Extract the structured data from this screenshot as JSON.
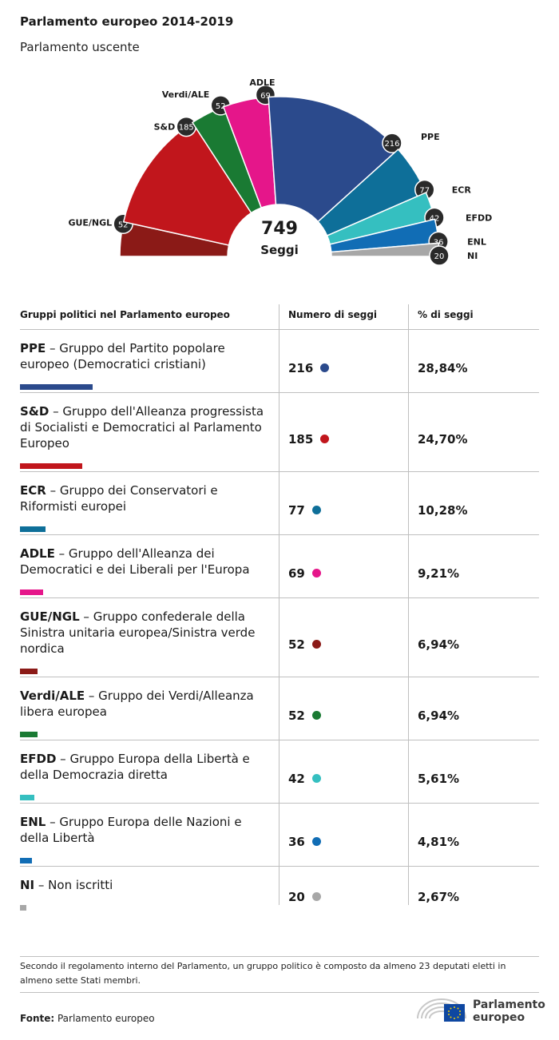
{
  "header": {
    "title": "Parlamento europeo 2014-2019",
    "subtitle": "Parlamento uscente"
  },
  "chart_data": {
    "type": "pie",
    "variant": "half-donut parliament chart",
    "center_value": "749",
    "center_label": "Seggi",
    "total": 749,
    "slices": [
      {
        "label": "GUE/NGL",
        "value": 52,
        "color": "#8b1a17"
      },
      {
        "label": "S&D",
        "value": 185,
        "color": "#c1161c"
      },
      {
        "label": "Verdi/ALE",
        "value": 52,
        "color": "#1a7a33"
      },
      {
        "label": "ADLE",
        "value": 69,
        "color": "#e5168a"
      },
      {
        "label": "PPE",
        "value": 216,
        "color": "#2b4a8c"
      },
      {
        "label": "ECR",
        "value": 77,
        "color": "#0e6f99"
      },
      {
        "label": "EFDD",
        "value": 42,
        "color": "#35bfc0"
      },
      {
        "label": "ENL",
        "value": 36,
        "color": "#116db5"
      },
      {
        "label": "NI",
        "value": 20,
        "color": "#a7a7a7"
      }
    ]
  },
  "table": {
    "headers": [
      "Gruppi politici nel Parlamento europeo",
      "Numero di seggi",
      "% di seggi"
    ],
    "rows": [
      {
        "abbr": "PPE",
        "name": " – Gruppo del Partito popolare europeo (Democratici cristiani)",
        "seats": "216",
        "pct": "28,84%",
        "color": "#2b4a8c",
        "share": 0.2884
      },
      {
        "abbr": "S&D",
        "name": " – Gruppo dell'Alleanza progressista di Socialisti e Democratici al Parlamento Europeo",
        "seats": "185",
        "pct": "24,70%",
        "color": "#c1161c",
        "share": 0.247
      },
      {
        "abbr": "ECR",
        "name": " – Gruppo dei Conservatori e Riformisti europei",
        "seats": "77",
        "pct": "10,28%",
        "color": "#0e6f99",
        "share": 0.1028
      },
      {
        "abbr": "ADLE",
        "name": " – Gruppo dell'Alleanza dei Democratici e dei Liberali per l'Europa",
        "seats": "69",
        "pct": "9,21%",
        "color": "#e5168a",
        "share": 0.0921
      },
      {
        "abbr": "GUE/NGL",
        "name": " – Gruppo confederale della Sinistra unitaria europea/Sinistra verde nordica",
        "seats": "52",
        "pct": "6,94%",
        "color": "#8b1a17",
        "share": 0.0694
      },
      {
        "abbr": "Verdi/ALE",
        "name": " – Gruppo dei Verdi/Alleanza libera europea",
        "seats": "52",
        "pct": "6,94%",
        "color": "#1a7a33",
        "share": 0.0694
      },
      {
        "abbr": "EFDD",
        "name": " – Gruppo Europa della Libertà e della Democrazia diretta",
        "seats": "42",
        "pct": "5,61%",
        "color": "#35bfc0",
        "share": 0.0561
      },
      {
        "abbr": "ENL",
        "name": " – Gruppo Europa delle Nazioni e della Libertà",
        "seats": "36",
        "pct": "4,81%",
        "color": "#116db5",
        "share": 0.0481
      },
      {
        "abbr": "NI",
        "name": " – Non iscritti",
        "seats": "20",
        "pct": "2,67%",
        "color": "#a7a7a7",
        "share": 0.0267
      }
    ]
  },
  "footer": {
    "note": "Secondo il regolamento interno del Parlamento, un gruppo politico è composto da almeno 23 deputati eletti in almeno sette Stati membri.",
    "source_label": "Fonte:",
    "source_value": " Parlamento europeo",
    "logo_line1": "Parlamento",
    "logo_line2": "europeo"
  }
}
